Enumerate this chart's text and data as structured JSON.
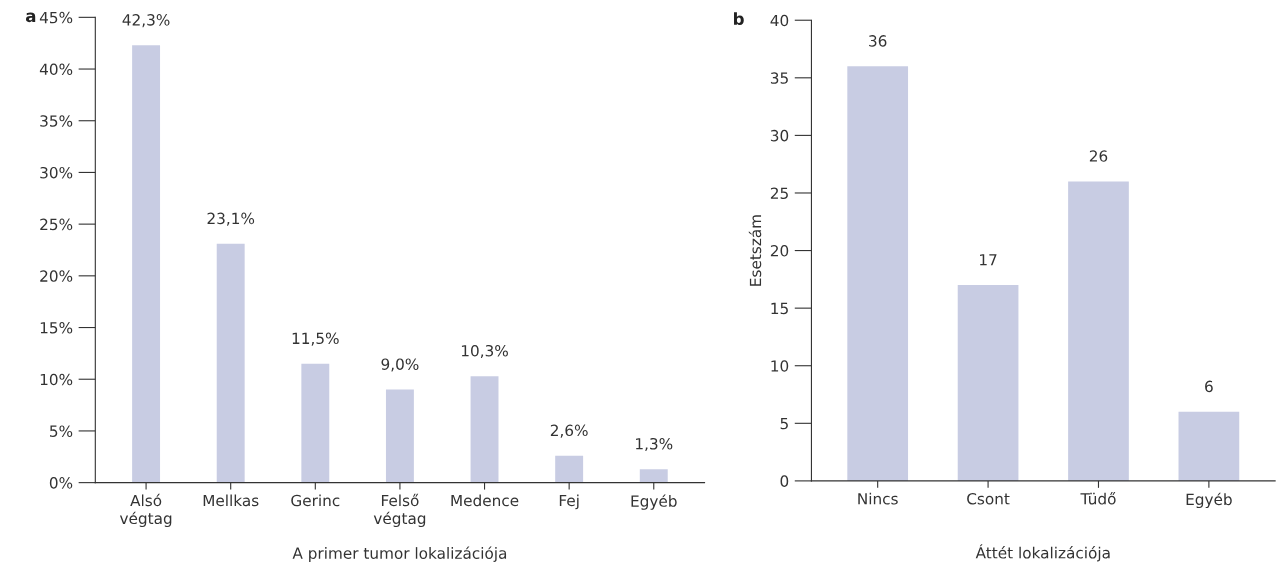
{
  "chart_data": [
    {
      "type": "bar",
      "title": "a",
      "xlabel": "A primer tumor lokalizációja",
      "categories": [
        "Alsó\nvégtag",
        "Mellkas",
        "Gerinc",
        "Felső\nvégtag",
        "Medence",
        "Fej",
        "Egyéb"
      ],
      "values": [
        42.3,
        23.1,
        11.5,
        9.0,
        10.3,
        2.6,
        1.3
      ],
      "value_labels": [
        "42,3%",
        "23,1%",
        "11,5%",
        "9,0%",
        "10,3%",
        "2,6%",
        "1,3%"
      ],
      "color": "#c8cce3",
      "ylim": [
        0,
        45
      ],
      "yticks": [
        {
          "value": 0,
          "label": "0%"
        },
        {
          "value": 5,
          "label": "5%"
        },
        {
          "value": 10,
          "label": "10%"
        },
        {
          "value": 15,
          "label": "15%"
        },
        {
          "value": 20,
          "label": "20%"
        },
        {
          "value": 25,
          "label": "25%"
        },
        {
          "value": 30,
          "label": "30%"
        },
        {
          "value": 35,
          "label": "35%"
        },
        {
          "value": 40,
          "label": "40%"
        },
        {
          "value": 45,
          "label": "45%"
        }
      ],
      "grid": false,
      "legend": false
    },
    {
      "type": "bar",
      "title": "b",
      "xlabel": "Áttét lokalizációja",
      "ylabel": "Esetszám",
      "categories": [
        "Nincs",
        "Csont",
        "Tüdő",
        "Egyéb"
      ],
      "values": [
        36,
        17,
        26,
        6
      ],
      "data_labels": true,
      "color": "#c8cce3",
      "ylim": [
        0,
        40
      ],
      "yticks": [
        0,
        5,
        10,
        15,
        20,
        25,
        30,
        35,
        40
      ],
      "grid": false,
      "legend": false
    }
  ]
}
